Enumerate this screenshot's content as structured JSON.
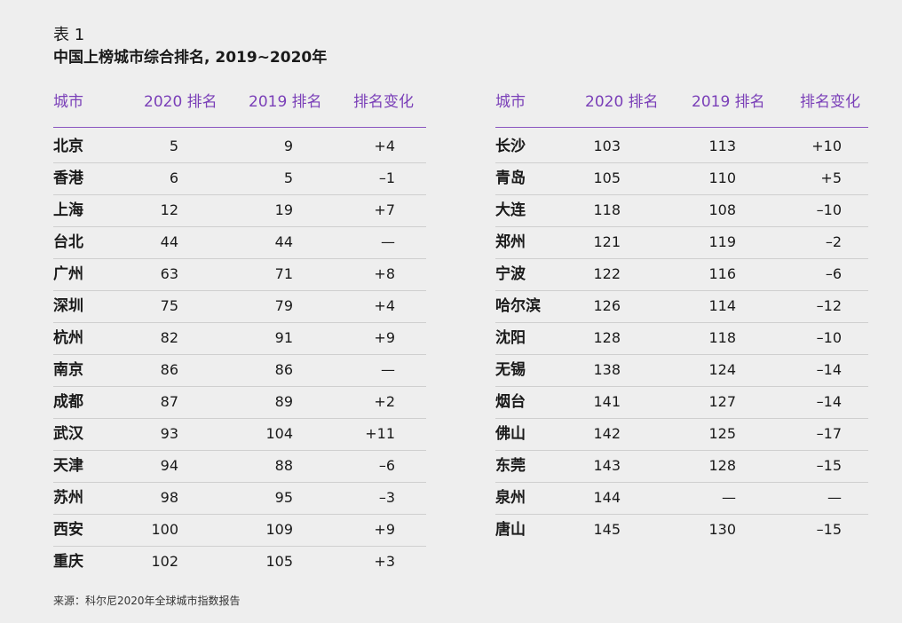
{
  "header": {
    "label": "表 1",
    "title": "中国上榜城市综合排名, 2019~2020年"
  },
  "tables": [
    {
      "columns": [
        "城市",
        "2020 排名",
        "2019 排名",
        "排名变化"
      ],
      "rows": [
        [
          "北京",
          5,
          9,
          "+4"
        ],
        [
          "香港",
          6,
          5,
          "–1"
        ],
        [
          "上海",
          12,
          19,
          "+7"
        ],
        [
          "台北",
          44,
          44,
          "—"
        ],
        [
          "广州",
          63,
          71,
          "+8"
        ],
        [
          "深圳",
          75,
          79,
          "+4"
        ],
        [
          "杭州",
          82,
          91,
          "+9"
        ],
        [
          "南京",
          86,
          86,
          "—"
        ],
        [
          "成都",
          87,
          89,
          "+2"
        ],
        [
          "武汉",
          93,
          104,
          "+11"
        ],
        [
          "天津",
          94,
          88,
          "–6"
        ],
        [
          "苏州",
          98,
          95,
          "–3"
        ],
        [
          "西安",
          100,
          109,
          "+9"
        ],
        [
          "重庆",
          102,
          105,
          "+3"
        ]
      ]
    },
    {
      "columns": [
        "城市",
        "2020 排名",
        "2019 排名",
        "排名变化"
      ],
      "rows": [
        [
          "长沙",
          103,
          113,
          "+10"
        ],
        [
          "青岛",
          105,
          110,
          "+5"
        ],
        [
          "大连",
          118,
          108,
          "–10"
        ],
        [
          "郑州",
          121,
          119,
          "–2"
        ],
        [
          "宁波",
          122,
          116,
          "–6"
        ],
        [
          "哈尔滨",
          126,
          114,
          "–12"
        ],
        [
          "沈阳",
          128,
          118,
          "–10"
        ],
        [
          "无锡",
          138,
          124,
          "–14"
        ],
        [
          "烟台",
          141,
          127,
          "–14"
        ],
        [
          "佛山",
          142,
          125,
          "–17"
        ],
        [
          "东莞",
          143,
          128,
          "–15"
        ],
        [
          "泉州",
          144,
          "—",
          "—"
        ],
        [
          "唐山",
          145,
          130,
          "–15"
        ]
      ]
    }
  ],
  "source": "来源：科尔尼2020年全球城市指数报告"
}
